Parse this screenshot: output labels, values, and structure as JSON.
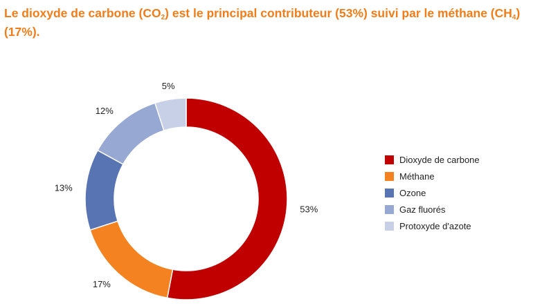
{
  "title": {
    "part1": "Le dioxyde de carbone (CO",
    "sub1": "2",
    "part2": ") est le principal contributeur (53%) suivi par le méthane (CH",
    "sub2": "4",
    "part3": ") (17%)."
  },
  "chart_data": {
    "type": "pie",
    "variant": "donut",
    "title": "",
    "legend_position": "right",
    "slices": [
      {
        "name": "Dioxyde de carbone",
        "value": 53,
        "label": "53%",
        "color": "#c00000"
      },
      {
        "name": "Méthane",
        "value": 17,
        "label": "17%",
        "color": "#f58220"
      },
      {
        "name": "Ozone",
        "value": 13,
        "label": "13%",
        "color": "#5874b3"
      },
      {
        "name": "Gaz fluorés",
        "value": 12,
        "label": "12%",
        "color": "#97a9d3"
      },
      {
        "name": "Protoxyde d'azote",
        "value": 5,
        "label": "5%",
        "color": "#c7d0e7"
      }
    ]
  }
}
